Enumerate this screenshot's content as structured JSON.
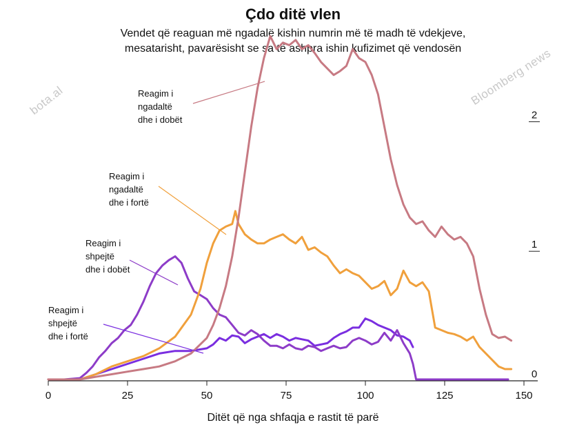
{
  "chart_data": {
    "type": "line",
    "title": "Çdo ditë vlen",
    "subtitle_lines": [
      "Vendet që reaguan më ngadalë kishin numrin më të madh të vdekjeve,",
      "mesatarisht, pavarësisht se sa të ashpra ishin kufizimet që vendosën"
    ],
    "xlabel": "Ditët që nga shfaqja e rastit të parë",
    "ylabel": "",
    "xlim": [
      0,
      150
    ],
    "ylim": [
      0,
      2.7
    ],
    "x_ticks": [
      "0",
      "25",
      "50",
      "75",
      "100",
      "125",
      "150"
    ],
    "y_ticks": [
      "0",
      "1",
      "2"
    ],
    "series": [
      {
        "name": "Reagim i ngadaltë dhe i dobët",
        "color": "#c77a83",
        "x": [
          0,
          5,
          10,
          15,
          20,
          25,
          30,
          35,
          40,
          45,
          50,
          52,
          54,
          56,
          58,
          60,
          62,
          64,
          66,
          68,
          70,
          71,
          72,
          74,
          76,
          78,
          80,
          82,
          84,
          86,
          88,
          90,
          92,
          94,
          96,
          98,
          100,
          102,
          104,
          106,
          108,
          110,
          112,
          114,
          116,
          118,
          120,
          122,
          124,
          126,
          128,
          130,
          132,
          134,
          136,
          138,
          140,
          142,
          144,
          146
        ],
        "y": [
          0,
          0,
          0,
          0.02,
          0.04,
          0.06,
          0.08,
          0.1,
          0.14,
          0.2,
          0.32,
          0.42,
          0.55,
          0.72,
          0.95,
          1.25,
          1.6,
          1.95,
          2.25,
          2.48,
          2.65,
          2.6,
          2.55,
          2.6,
          2.58,
          2.62,
          2.55,
          2.58,
          2.52,
          2.45,
          2.4,
          2.35,
          2.38,
          2.42,
          2.55,
          2.48,
          2.45,
          2.35,
          2.2,
          1.95,
          1.7,
          1.5,
          1.35,
          1.25,
          1.2,
          1.22,
          1.15,
          1.1,
          1.18,
          1.12,
          1.08,
          1.1,
          1.05,
          0.95,
          0.7,
          0.5,
          0.35,
          0.32,
          0.33,
          0.3
        ]
      },
      {
        "name": "Reagim i ngadaltë dhe i fortë",
        "color": "#f0a03c",
        "x": [
          0,
          5,
          10,
          15,
          20,
          25,
          30,
          35,
          40,
          45,
          48,
          50,
          52,
          54,
          56,
          58,
          59,
          60,
          62,
          64,
          66,
          68,
          70,
          72,
          74,
          76,
          78,
          80,
          82,
          84,
          86,
          88,
          90,
          92,
          94,
          96,
          98,
          100,
          102,
          104,
          106,
          108,
          110,
          112,
          114,
          116,
          118,
          120,
          122,
          124,
          126,
          128,
          130,
          132,
          134,
          136,
          138,
          140,
          142,
          144,
          146
        ],
        "y": [
          0,
          0,
          0,
          0.04,
          0.1,
          0.14,
          0.18,
          0.24,
          0.33,
          0.5,
          0.7,
          0.9,
          1.05,
          1.15,
          1.18,
          1.2,
          1.3,
          1.2,
          1.12,
          1.08,
          1.05,
          1.05,
          1.08,
          1.1,
          1.12,
          1.08,
          1.05,
          1.1,
          1.0,
          1.02,
          0.98,
          0.95,
          0.88,
          0.82,
          0.85,
          0.82,
          0.8,
          0.75,
          0.7,
          0.72,
          0.76,
          0.65,
          0.7,
          0.84,
          0.75,
          0.72,
          0.75,
          0.68,
          0.4,
          0.38,
          0.36,
          0.35,
          0.33,
          0.3,
          0.33,
          0.25,
          0.2,
          0.15,
          0.1,
          0.08,
          0.08
        ]
      },
      {
        "name": "Reagim i shpejtë dhe i dobët",
        "color": "#8d3cc8",
        "x": [
          0,
          5,
          10,
          12,
          14,
          16,
          18,
          20,
          22,
          24,
          26,
          28,
          30,
          32,
          34,
          36,
          38,
          40,
          42,
          44,
          46,
          48,
          50,
          52,
          54,
          56,
          58,
          60,
          62,
          64,
          66,
          68,
          70,
          72,
          74,
          76,
          78,
          80,
          82,
          84,
          86,
          88,
          90,
          92,
          94,
          96,
          98,
          100,
          102,
          104,
          106,
          108,
          110,
          112,
          114,
          115,
          116,
          118,
          120,
          125,
          130,
          135,
          140,
          145
        ],
        "y": [
          0,
          0,
          0.01,
          0.05,
          0.1,
          0.17,
          0.22,
          0.28,
          0.32,
          0.38,
          0.42,
          0.5,
          0.6,
          0.72,
          0.82,
          0.88,
          0.92,
          0.95,
          0.9,
          0.78,
          0.68,
          0.65,
          0.62,
          0.55,
          0.5,
          0.48,
          0.42,
          0.36,
          0.34,
          0.38,
          0.35,
          0.3,
          0.26,
          0.26,
          0.24,
          0.27,
          0.24,
          0.23,
          0.26,
          0.25,
          0.22,
          0.24,
          0.26,
          0.24,
          0.25,
          0.3,
          0.32,
          0.3,
          0.27,
          0.29,
          0.36,
          0.3,
          0.38,
          0.28,
          0.2,
          0.12,
          0,
          0,
          0,
          0,
          0,
          0,
          0,
          0
        ]
      },
      {
        "name": "Reagim i shpejtë dhe i fortë",
        "color": "#7a2ee0",
        "x": [
          0,
          5,
          10,
          15,
          20,
          25,
          30,
          35,
          40,
          45,
          50,
          52,
          54,
          56,
          58,
          60,
          62,
          64,
          66,
          68,
          70,
          72,
          74,
          76,
          78,
          80,
          82,
          84,
          86,
          88,
          90,
          92,
          94,
          96,
          98,
          100,
          102,
          104,
          106,
          108,
          110,
          112,
          114,
          115
        ],
        "y": [
          0,
          0,
          0,
          0.04,
          0.08,
          0.12,
          0.16,
          0.2,
          0.22,
          0.22,
          0.24,
          0.27,
          0.32,
          0.3,
          0.34,
          0.33,
          0.28,
          0.31,
          0.33,
          0.35,
          0.32,
          0.35,
          0.33,
          0.3,
          0.32,
          0.31,
          0.3,
          0.26,
          0.27,
          0.28,
          0.32,
          0.35,
          0.37,
          0.4,
          0.4,
          0.47,
          0.45,
          0.42,
          0.4,
          0.38,
          0.34,
          0.33,
          0.3,
          0.25
        ]
      }
    ],
    "annotations": [
      {
        "lines": [
          "Reagim i",
          "ngadaltë",
          "dhe i dobët"
        ],
        "series": 0
      },
      {
        "lines": [
          "Reagim i",
          "ngadaltë",
          "dhe i fortë"
        ],
        "series": 1
      },
      {
        "lines": [
          "Reagim i",
          "shpejtë",
          "dhe i dobët"
        ],
        "series": 2
      },
      {
        "lines": [
          "Reagim i",
          "shpejtë",
          "dhe i fortë"
        ],
        "series": 3
      }
    ],
    "grid": false,
    "legend": "none"
  },
  "watermarks": {
    "left": "bota.al",
    "right": "Bloomberg news"
  }
}
